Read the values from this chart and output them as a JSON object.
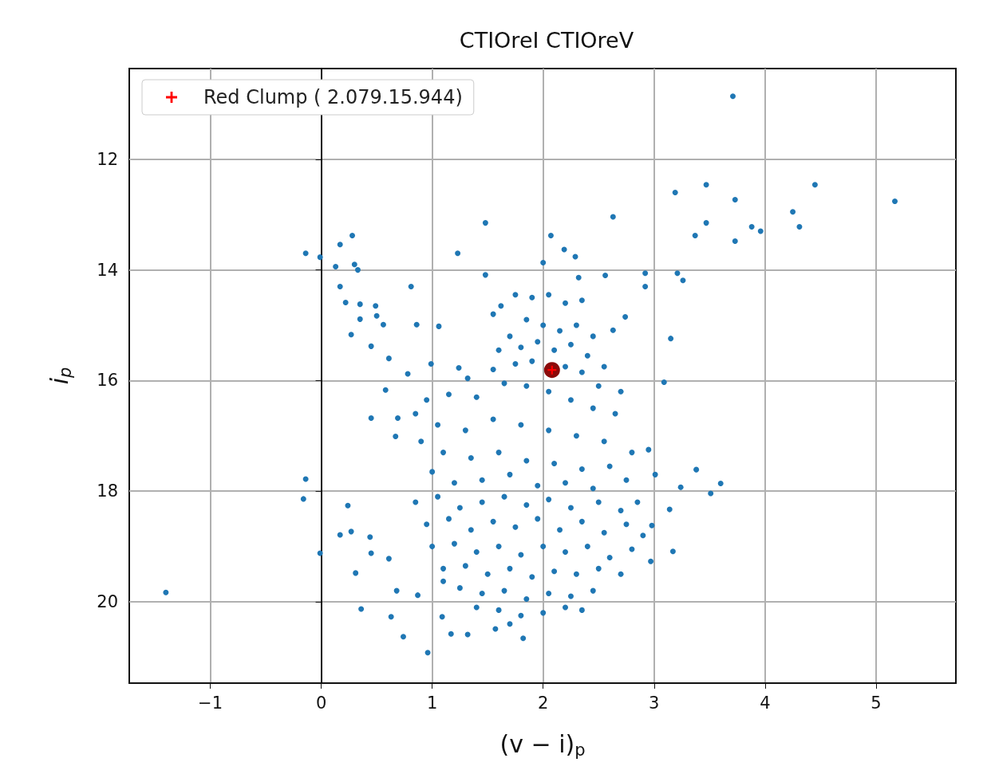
{
  "chart_data": {
    "type": "scatter",
    "title": "CTIOreI CTIOreV",
    "xlabel": "(v − i)$_{p}$",
    "ylabel": "i$_{p}$",
    "xlim": [
      -1.73,
      5.72
    ],
    "ylim": [
      21.47,
      10.36
    ],
    "xticks": [
      -1,
      0,
      1,
      2,
      3,
      4,
      5
    ],
    "yticks": [
      12,
      14,
      16,
      18,
      20
    ],
    "grid": true,
    "legend": "top left",
    "series": [
      {
        "color": "#1f77b4",
        "marker": "circle",
        "x": [
          -1.4,
          5.17,
          3.71,
          4.45,
          3.47,
          3.19,
          3.73,
          4.25,
          4.31,
          3.88,
          3.96,
          3.47,
          3.37,
          3.73,
          2.63,
          1.48,
          2.07,
          2.19,
          2.29,
          2.0,
          1.48,
          1.23,
          2.56,
          2.92,
          2.92,
          3.21,
          3.26,
          2.32,
          2.74,
          2.63,
          3.15,
          3.09,
          2.95,
          3.01,
          3.38,
          3.6,
          3.51,
          3.24,
          3.14,
          2.98,
          3.17,
          2.97,
          -0.14,
          -0.01,
          0.17,
          0.28,
          0.3,
          0.13,
          0.33,
          0.17,
          0.22,
          0.35,
          0.49,
          0.35,
          0.5,
          0.56,
          0.27,
          0.45,
          0.81,
          0.86,
          1.06,
          0.61,
          0.78,
          0.99,
          1.24,
          1.32,
          0.58,
          0.45,
          0.69,
          0.67,
          -0.14,
          -0.16,
          0.24,
          0.27,
          0.17,
          0.44,
          -0.01,
          0.45,
          0.31,
          0.61,
          0.36,
          0.63,
          0.74,
          0.96,
          1.09,
          1.17,
          1.32,
          1.57,
          1.82,
          0.68,
          0.87,
          1.1,
          1.55,
          1.62,
          1.75,
          1.9,
          2.05,
          2.2,
          2.35,
          1.85,
          2.0,
          2.15,
          2.3,
          2.45,
          1.7,
          1.6,
          1.8,
          1.95,
          2.1,
          2.25,
          2.4,
          2.55,
          1.55,
          1.75,
          1.9,
          2.2,
          2.35,
          2.5,
          2.7,
          1.65,
          1.85,
          2.05,
          2.25,
          2.45,
          2.65,
          1.4,
          1.15,
          0.95,
          0.85,
          1.05,
          1.3,
          1.55,
          1.8,
          2.05,
          2.3,
          2.55,
          0.9,
          1.1,
          1.35,
          1.6,
          1.85,
          2.1,
          2.35,
          2.6,
          2.8,
          2.75,
          1.0,
          1.2,
          1.45,
          1.7,
          1.95,
          2.2,
          2.45,
          0.85,
          1.05,
          1.25,
          1.45,
          1.65,
          1.85,
          2.05,
          2.25,
          2.5,
          2.7,
          2.85,
          0.95,
          1.15,
          1.35,
          1.55,
          1.75,
          1.95,
          2.15,
          2.35,
          2.55,
          2.75,
          2.9,
          1.0,
          1.2,
          1.4,
          1.6,
          1.8,
          2.0,
          2.2,
          2.4,
          2.6,
          2.8,
          1.1,
          1.3,
          1.5,
          1.7,
          1.9,
          2.1,
          2.3,
          2.5,
          2.7,
          1.25,
          1.45,
          1.65,
          1.85,
          2.05,
          2.25,
          2.45,
          1.6,
          1.8,
          2.0,
          2.2,
          1.4,
          1.7,
          2.35
        ],
        "values": [
          19.83,
          12.76,
          10.86,
          12.46,
          12.46,
          12.6,
          12.73,
          12.95,
          13.22,
          13.22,
          13.3,
          13.15,
          13.38,
          13.48,
          13.04,
          13.15,
          13.38,
          13.63,
          13.76,
          13.87,
          14.09,
          13.7,
          14.1,
          14.06,
          14.3,
          14.06,
          14.19,
          14.14,
          14.85,
          15.09,
          15.24,
          16.03,
          17.25,
          17.7,
          17.61,
          17.86,
          18.04,
          17.93,
          18.33,
          18.62,
          19.09,
          19.27,
          13.7,
          13.77,
          13.54,
          13.38,
          13.9,
          13.94,
          14.0,
          14.3,
          14.59,
          14.62,
          14.65,
          14.89,
          14.83,
          14.99,
          15.17,
          15.38,
          14.3,
          14.99,
          15.02,
          15.6,
          15.88,
          15.7,
          15.77,
          15.96,
          16.17,
          16.68,
          16.68,
          17.01,
          17.78,
          18.14,
          18.26,
          18.73,
          18.79,
          18.83,
          19.12,
          19.12,
          19.48,
          19.22,
          20.13,
          20.27,
          20.63,
          20.92,
          20.27,
          20.58,
          20.59,
          20.49,
          20.66,
          19.8,
          19.88,
          19.63,
          14.8,
          14.65,
          14.45,
          14.5,
          14.45,
          14.6,
          14.55,
          14.9,
          15.0,
          15.1,
          15.0,
          15.2,
          15.2,
          15.45,
          15.4,
          15.3,
          15.45,
          15.35,
          15.55,
          15.75,
          15.8,
          15.7,
          15.65,
          15.75,
          15.85,
          16.1,
          16.2,
          16.05,
          16.1,
          16.2,
          16.35,
          16.5,
          16.6,
          16.3,
          16.25,
          16.35,
          16.6,
          16.8,
          16.9,
          16.7,
          16.8,
          16.9,
          17.0,
          17.1,
          17.1,
          17.3,
          17.4,
          17.3,
          17.45,
          17.5,
          17.6,
          17.55,
          17.3,
          17.8,
          17.65,
          17.85,
          17.8,
          17.7,
          17.9,
          17.85,
          17.95,
          18.2,
          18.1,
          18.3,
          18.2,
          18.1,
          18.25,
          18.15,
          18.3,
          18.2,
          18.35,
          18.2,
          18.6,
          18.5,
          18.7,
          18.55,
          18.65,
          18.5,
          18.7,
          18.55,
          18.75,
          18.6,
          18.8,
          19.0,
          18.95,
          19.1,
          19.0,
          19.15,
          19.0,
          19.1,
          19.0,
          19.2,
          19.05,
          19.4,
          19.35,
          19.5,
          19.4,
          19.55,
          19.45,
          19.5,
          19.4,
          19.5,
          19.75,
          19.85,
          19.8,
          19.95,
          19.85,
          19.9,
          19.8,
          20.15,
          20.25,
          20.2,
          20.1,
          20.1,
          20.4,
          20.15
        ]
      },
      {
        "color": "#8b0a0a",
        "marker": "circle",
        "x": [
          2.08
        ],
        "values": [
          15.81
        ]
      },
      {
        "name": "Red Clump ( 2.079.15.944)",
        "color": "#ff0000",
        "marker": "cross",
        "x": [
          2.08
        ],
        "values": [
          15.81
        ]
      }
    ]
  }
}
